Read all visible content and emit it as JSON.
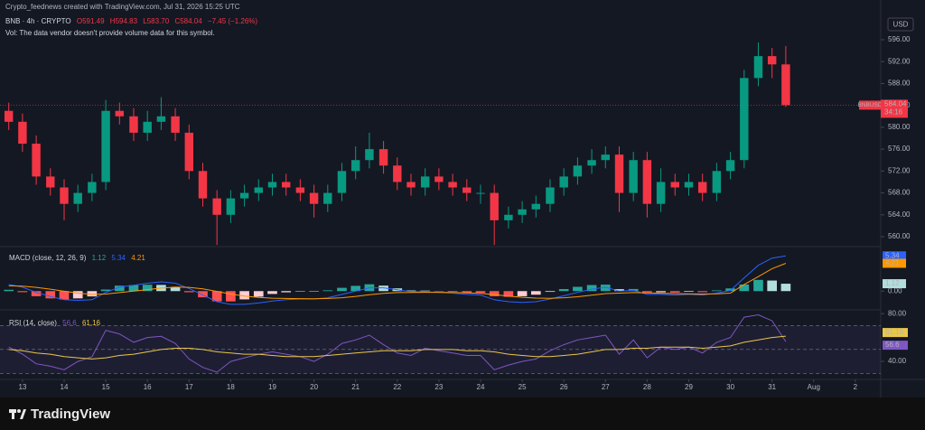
{
  "header": {
    "credit": "Crypto_feednews created with TradingView.com, Jul 31, 2026 15:25 UTC",
    "symbol": "BNB · 4h · CRYPTO",
    "ohlc": [
      "O591.49",
      "H594.83",
      "L583.70",
      "C584.04",
      "−7.45 (−1.26%)"
    ],
    "vol_note": "Vol: The data vendor doesn't provide volume data for this symbol.",
    "currency": "USD"
  },
  "footer": {
    "brand": "TradingView"
  },
  "chart_data": [
    {
      "type": "candlestick",
      "ticker": "BNBUSD",
      "countdown": "34:16",
      "up_color": "#089981",
      "down_color": "#f23645",
      "x": [
        12.67,
        13.0,
        13.33,
        13.67,
        14.0,
        14.33,
        14.67,
        15.0,
        15.33,
        15.67,
        16.0,
        16.33,
        16.67,
        17.0,
        17.33,
        17.67,
        18.0,
        18.33,
        18.67,
        19.0,
        19.33,
        19.67,
        20.0,
        20.33,
        20.67,
        21.0,
        21.33,
        21.67,
        22.0,
        22.33,
        22.67,
        23.0,
        23.33,
        23.67,
        24.0,
        24.33,
        24.67,
        25.0,
        25.33,
        25.67,
        26.0,
        26.33,
        26.67,
        27.0,
        27.33,
        27.67,
        28.0,
        28.33,
        28.67,
        29.0,
        29.33,
        29.67,
        30.0,
        30.33,
        30.67,
        31.0,
        31.33
      ],
      "open": [
        583,
        581,
        577,
        571,
        569,
        566,
        568,
        570,
        583,
        582,
        579,
        581,
        582,
        579,
        572,
        567,
        564,
        567,
        568,
        569,
        570,
        569,
        568,
        566,
        568,
        572,
        574,
        576,
        573,
        570,
        569,
        571,
        570,
        569,
        568,
        568,
        563,
        564,
        565,
        566,
        569,
        571,
        573,
        574,
        575,
        568,
        574,
        566,
        570,
        569,
        570,
        568,
        572,
        574,
        589,
        593,
        591.49
      ],
      "high": [
        584.5,
        582.5,
        578.5,
        572.5,
        570.5,
        569.5,
        571.5,
        585,
        584.5,
        583.5,
        583,
        585.5,
        583.5,
        580.5,
        573.5,
        568.5,
        568.5,
        569.5,
        570.5,
        571.5,
        571.5,
        570.5,
        569.5,
        569.5,
        573.5,
        576.5,
        579,
        577.5,
        574.5,
        571.5,
        572.5,
        572.5,
        571.5,
        570.5,
        569.5,
        569.5,
        565.5,
        566.5,
        567.5,
        570.5,
        572.5,
        574.5,
        576,
        576.5,
        576.5,
        575.5,
        575.5,
        572.5,
        571.5,
        571.5,
        571.5,
        573.5,
        575.5,
        590.5,
        595.5,
        594.5,
        594.83
      ],
      "low": [
        579.5,
        575.5,
        569.5,
        567.5,
        563,
        564.5,
        566.5,
        568.5,
        580.5,
        577.5,
        577.5,
        579.5,
        577.5,
        570.5,
        565.5,
        558.5,
        562.5,
        565.5,
        566.5,
        567.5,
        567.5,
        566.5,
        563.5,
        564.5,
        566.5,
        570.5,
        572.5,
        571.5,
        568.5,
        567.5,
        567.5,
        568.5,
        567.5,
        566.5,
        566,
        558.5,
        561.5,
        562.5,
        563.5,
        564.5,
        567.5,
        569.5,
        571.5,
        572.5,
        564.5,
        566.5,
        563.5,
        564.5,
        567.5,
        567.5,
        566.5,
        566.5,
        570.5,
        572.5,
        587.5,
        589,
        583.7
      ],
      "close": [
        581,
        577,
        571,
        569,
        566,
        568,
        570,
        583,
        582,
        579,
        581,
        582,
        579,
        572,
        567,
        564,
        567,
        568,
        569,
        570,
        569,
        568,
        566,
        568,
        572,
        574,
        576,
        573,
        570,
        569,
        571,
        570,
        569,
        568,
        568,
        563,
        564,
        565,
        566,
        569,
        571,
        573,
        574,
        575,
        568,
        574,
        566,
        570,
        569,
        570,
        568,
        572,
        574,
        589,
        593,
        591.49,
        584.04
      ],
      "xlim": [
        12.46,
        33.61
      ],
      "xticks": [
        13,
        14,
        15,
        16,
        17,
        18,
        19,
        20,
        21,
        22,
        23,
        24,
        25,
        26,
        27,
        28,
        29,
        30,
        31,
        {
          "value": 32,
          "label": "Aug"
        },
        {
          "value": 33,
          "label": "2"
        }
      ],
      "ylim": [
        558.35,
        603.26
      ],
      "yticks": [
        {
          "value": 560,
          "label": "560.00"
        },
        {
          "value": 564,
          "label": "564.00"
        },
        {
          "value": 568,
          "label": "568.00"
        },
        {
          "value": 572,
          "label": "572.00"
        },
        {
          "value": 576,
          "label": "576.00"
        },
        {
          "value": 580,
          "label": "580.00"
        },
        {
          "value": 584,
          "label": "584.00"
        },
        {
          "value": 588,
          "label": "588.00"
        },
        {
          "value": 592,
          "label": "592.00"
        },
        {
          "value": 596,
          "label": "596.00"
        }
      ]
    },
    {
      "type": "macd",
      "title": "MACD (close, 12, 26, 9)",
      "macd_color": "#2962ff",
      "signal_color": "#ff9800",
      "hist_colors": [
        "#26a69a",
        "#b2dfdb",
        "#ffcdd2",
        "#ff5252"
      ],
      "hist": [
        0.2,
        -0.16,
        -0.77,
        -1.1,
        -1.28,
        -1.1,
        -0.8,
        0.24,
        0.83,
        0.91,
        0.97,
        0.94,
        0.59,
        -0.17,
        -0.94,
        -1.55,
        -1.56,
        -1.25,
        -0.84,
        -0.43,
        -0.18,
        -0.06,
        -0.05,
        0.12,
        0.5,
        0.8,
        1.04,
        0.83,
        0.42,
        0.1,
        0.08,
        -0.02,
        -0.1,
        -0.24,
        -0.27,
        -0.78,
        -0.86,
        -0.77,
        -0.54,
        -0.11,
        0.31,
        0.65,
        0.92,
        0.98,
        0.3,
        0.32,
        -0.22,
        -0.18,
        -0.22,
        -0.1,
        -0.16,
        0.11,
        0.41,
        1.0,
        1.7,
        1.6,
        1.12
      ],
      "macd": [
        1.0,
        0.6,
        -0.2,
        -0.8,
        -1.3,
        -1.4,
        -1.3,
        -0.2,
        0.6,
        0.9,
        1.2,
        1.4,
        1.2,
        0.4,
        -0.6,
        -1.6,
        -2.0,
        -2.0,
        -1.8,
        -1.5,
        -1.3,
        -1.2,
        -1.2,
        -1.0,
        -0.5,
        0.0,
        0.5,
        0.5,
        0.2,
        -0.1,
        -0.1,
        -0.2,
        -0.3,
        -0.5,
        -0.6,
        -1.3,
        -1.6,
        -1.7,
        -1.6,
        -1.2,
        -0.7,
        -0.2,
        0.3,
        0.6,
        0.0,
        0.1,
        -0.5,
        -0.5,
        -0.6,
        -0.5,
        -0.6,
        -0.3,
        0.1,
        2.0,
        3.9,
        5.0,
        5.34
      ],
      "signal": [
        0.8,
        0.76,
        0.57,
        0.3,
        -0.02,
        -0.3,
        -0.5,
        -0.44,
        -0.23,
        -0.01,
        0.23,
        0.46,
        0.61,
        0.57,
        0.34,
        -0.05,
        -0.44,
        -0.75,
        -0.96,
        -1.07,
        -1.12,
        -1.14,
        -1.15,
        -1.12,
        -1.0,
        -0.8,
        -0.54,
        -0.33,
        -0.22,
        -0.2,
        -0.18,
        -0.18,
        -0.2,
        -0.26,
        -0.33,
        -0.52,
        -0.74,
        -0.93,
        -1.06,
        -1.09,
        -1.01,
        -0.85,
        -0.62,
        -0.38,
        -0.3,
        -0.22,
        -0.28,
        -0.32,
        -0.38,
        -0.4,
        -0.44,
        -0.41,
        -0.31,
        1.0,
        2.2,
        3.4,
        4.21
      ],
      "ylim": [
        -2.7,
        6.6
      ],
      "yticks": [
        {
          "value": 0,
          "label": "0.00"
        }
      ]
    },
    {
      "type": "rsi",
      "title": "RSI (14, close)",
      "rsi_color": "#7e57c2",
      "ma_color": "#e9c74a",
      "rsi": [
        52,
        46,
        38,
        36,
        33,
        40,
        44,
        66,
        63,
        56,
        60,
        61,
        55,
        42,
        35,
        31,
        40,
        43,
        46,
        48,
        46,
        44,
        40,
        46,
        55,
        58,
        62,
        54,
        47,
        45,
        51,
        49,
        47,
        45,
        45,
        33,
        37,
        40,
        42,
        49,
        54,
        58,
        60,
        62,
        46,
        58,
        43,
        52,
        50,
        52,
        47,
        56,
        60,
        77,
        79,
        74,
        56.6
      ],
      "ma": [
        50,
        49,
        47,
        46,
        44,
        43,
        42,
        43,
        45,
        46,
        48,
        50,
        51,
        51,
        50,
        48,
        47,
        46,
        46,
        45,
        44,
        44,
        44,
        45,
        46,
        47,
        48,
        49,
        49,
        49,
        50,
        50,
        50,
        49,
        49,
        48,
        46,
        45,
        44,
        44,
        45,
        46,
        48,
        50,
        50,
        51,
        51,
        52,
        52,
        52,
        51,
        52,
        53,
        56,
        58,
        60,
        61.16
      ],
      "levels": [
        70,
        50,
        30
      ],
      "ylim": [
        25.7,
        82.4
      ],
      "yticks": [
        {
          "value": 80,
          "label": "80.00"
        },
        {
          "value": 40,
          "label": "40.00"
        }
      ]
    }
  ]
}
